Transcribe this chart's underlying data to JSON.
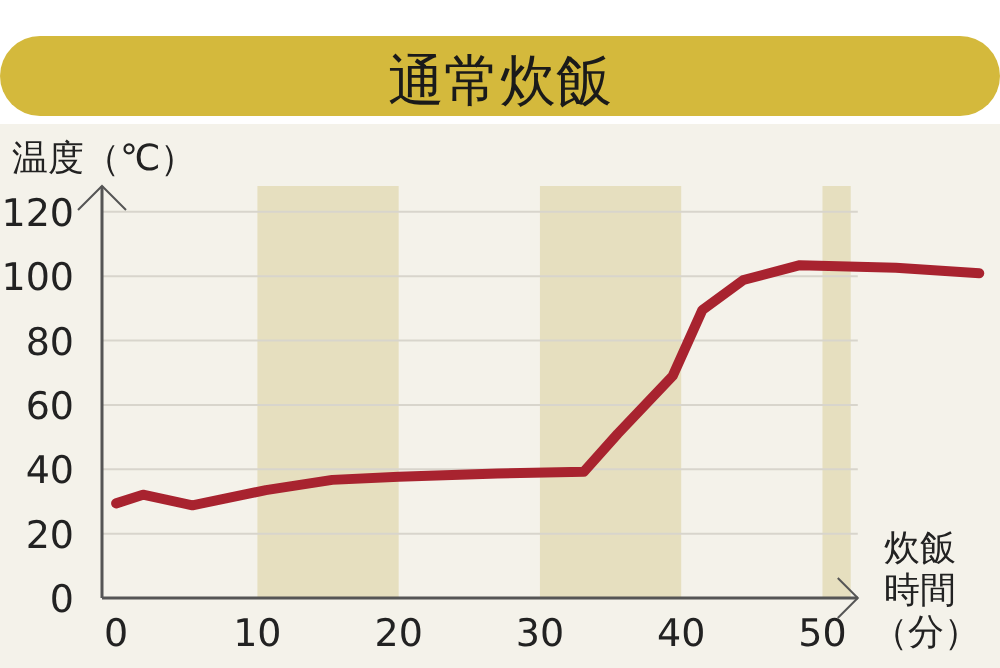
{
  "chart_data": {
    "type": "line",
    "title": "通常炊飯",
    "ylabel": "温度（℃）",
    "xlabel": "炊飯時間（分）",
    "x": [
      0,
      1.9,
      5.4,
      10.6,
      15.3,
      20,
      27,
      33.1,
      35.5,
      39.4,
      41.5,
      44.4,
      48.4,
      55.2,
      61.1
    ],
    "series": [
      {
        "color": "#a8232f",
        "values": [
          29.4,
          32.1,
          28.8,
          33.5,
          36.7,
          37.7,
          38.7,
          39.2,
          51,
          69,
          89.5,
          98.8,
          103.4,
          102.6,
          100.9
        ]
      }
    ],
    "xlim": [
      -1,
      62
    ],
    "ylim": [
      0,
      128
    ],
    "xticks": [
      0,
      10,
      20,
      30,
      40,
      50
    ],
    "yticks": [
      0,
      20,
      40,
      60,
      80,
      100,
      120
    ],
    "bands": [
      {
        "axis": "x",
        "from": 10,
        "to": 20,
        "color": "#e6dfbf"
      },
      {
        "axis": "x",
        "from": 30,
        "to": 40,
        "color": "#e6dfbf"
      },
      {
        "axis": "x",
        "from": 50,
        "to": 52,
        "color": "#e6dfbf"
      }
    ],
    "grid": "y"
  }
}
